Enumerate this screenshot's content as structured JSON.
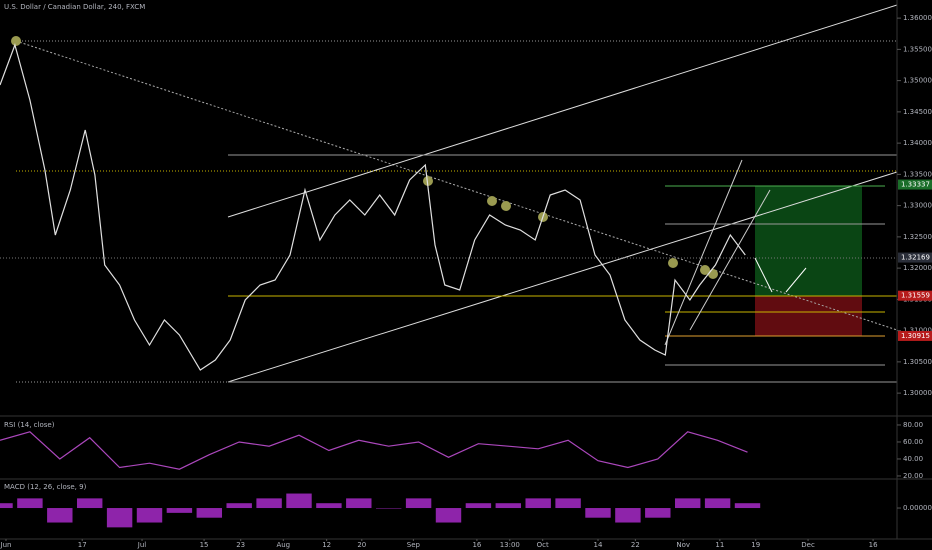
{
  "chart_data": [
    {
      "type": "line",
      "title": "U.S. Dollar / Canadian Dollar, 240, FXCM",
      "x": [
        0,
        2,
        4,
        6,
        7.4,
        9.4,
        11.4,
        12.7,
        14,
        16,
        18,
        20,
        22,
        24,
        26.8,
        28.8,
        30.8,
        32.8,
        34.8,
        36.8,
        38.8,
        40.8,
        42.8,
        44.8,
        46.8,
        48.8,
        50.8,
        52.8,
        54.8,
        56.9,
        58.2,
        59.5,
        61.5,
        63.5,
        65.5,
        67.6,
        69.6,
        71.6,
        73.6,
        75.6,
        77.6,
        79.6,
        81.6,
        83.6,
        85.6,
        87.6,
        89,
        90.3,
        92.3,
        93.6,
        95.7,
        97.7,
        99.7
      ],
      "series": [
        {
          "name": "USDCAD",
          "color": "#e0e0e0",
          "values": [
            1.3493,
            1.3557,
            1.3469,
            1.3357,
            1.3253,
            1.3325,
            1.3421,
            1.3349,
            1.3205,
            1.3173,
            1.3117,
            1.3077,
            1.3117,
            1.3093,
            1.3037,
            1.3053,
            1.3085,
            1.3149,
            1.3173,
            1.3181,
            1.3221,
            1.3325,
            1.3245,
            1.3285,
            1.3309,
            1.3285,
            1.3317,
            1.3285,
            1.3341,
            1.3365,
            1.3237,
            1.3173,
            1.3165,
            1.3245,
            1.3285,
            1.3269,
            1.3261,
            1.3245,
            1.3317,
            1.3325,
            1.3309,
            1.3221,
            1.3189,
            1.3117,
            1.3085,
            1.3069,
            1.3061,
            1.3181,
            1.3149,
            1.3173,
            1.3205,
            1.3253,
            1.3221
          ]
        }
      ],
      "xlim": [
        0,
        120
      ],
      "ylim": [
        1.2965,
        1.3629
      ],
      "yticks": [
        {
          "value": 1.3,
          "label": "1.30000"
        },
        {
          "value": 1.305,
          "label": "1.30500"
        },
        {
          "value": 1.31,
          "label": "1.31000"
        },
        {
          "value": 1.315,
          "label": "1.31500"
        },
        {
          "value": 1.32,
          "label": "1.32000"
        },
        {
          "value": 1.325,
          "label": "1.32500"
        },
        {
          "value": 1.33,
          "label": "1.33000"
        },
        {
          "value": 1.335,
          "label": "1.33500"
        },
        {
          "value": 1.34,
          "label": "1.34000"
        },
        {
          "value": 1.345,
          "label": "1.34500"
        },
        {
          "value": 1.35,
          "label": "1.35000"
        },
        {
          "value": 1.355,
          "label": "1.35500"
        },
        {
          "value": 1.36,
          "label": "1.36000"
        }
      ],
      "price_labels": [
        {
          "value": 1.33337,
          "label": "1.33337",
          "color": "#1b6e2a"
        },
        {
          "value": 1.32169,
          "label": "1.32169",
          "color": "#2a2e39"
        },
        {
          "value": 1.31559,
          "label": "1.31559",
          "color": "#b71c1c"
        },
        {
          "value": 1.30915,
          "label": "1.30915",
          "color": "#b71c1c"
        }
      ]
    },
    {
      "type": "line",
      "title": "RSI (14, close)",
      "x": [
        0,
        4,
        8,
        12,
        16,
        20,
        24,
        28,
        32,
        36,
        40,
        44,
        48,
        52,
        56,
        60,
        64,
        68,
        72,
        76,
        80,
        84,
        88,
        92,
        96,
        100
      ],
      "series": [
        {
          "name": "RSI",
          "color": "#ab47bc",
          "values": [
            62,
            72,
            40,
            65,
            30,
            35,
            28,
            45,
            60,
            55,
            68,
            50,
            62,
            55,
            60,
            42,
            58,
            55,
            52,
            62,
            38,
            30,
            40,
            72,
            62,
            48
          ]
        }
      ],
      "xlim": [
        0,
        120
      ],
      "ylim": [
        17.6,
        88.2
      ],
      "yticks": [
        {
          "value": 20,
          "label": "20.00"
        },
        {
          "value": 40,
          "label": "40.00"
        },
        {
          "value": 60,
          "label": "60.00"
        },
        {
          "value": 80,
          "label": "80.00"
        }
      ]
    },
    {
      "type": "bar",
      "title": "MACD (12, 26, close, 9)",
      "x": [
        0,
        4,
        8,
        12,
        16,
        20,
        24,
        28,
        32,
        36,
        40,
        44,
        48,
        52,
        56,
        60,
        64,
        68,
        72,
        76,
        80,
        84,
        88,
        92,
        96,
        100
      ],
      "series": [
        {
          "name": "Histogram",
          "color": "#8e24aa",
          "values": [
            0.001,
            0.002,
            -0.003,
            0.002,
            -0.004,
            -0.003,
            -0.001,
            -0.002,
            0.001,
            0.002,
            0.003,
            0.001,
            0.002,
            0,
            0.002,
            -0.003,
            0.001,
            0.001,
            0.002,
            0.002,
            -0.002,
            -0.003,
            -0.002,
            0.002,
            0.002,
            0.001
          ]
        }
      ],
      "xlim": [
        0,
        120
      ],
      "ylim": [
        -0.0062,
        0.0058
      ],
      "yticks": [
        {
          "value": 0,
          "label": "0.00000"
        }
      ],
      "xticks": [
        {
          "value": 0.8,
          "label": "Jun"
        },
        {
          "value": 11,
          "label": "17"
        },
        {
          "value": 19,
          "label": "Jul"
        },
        {
          "value": 27.3,
          "label": "15"
        },
        {
          "value": 32.2,
          "label": "23"
        },
        {
          "value": 37.9,
          "label": "Aug"
        },
        {
          "value": 43.7,
          "label": "12"
        },
        {
          "value": 48.4,
          "label": "20"
        },
        {
          "value": 55.3,
          "label": "Sep"
        },
        {
          "value": 63.8,
          "label": "16"
        },
        {
          "value": 68.2,
          "label": "13:00"
        },
        {
          "value": 72.6,
          "label": "Oct"
        },
        {
          "value": 80,
          "label": "14"
        },
        {
          "value": 85,
          "label": "22"
        },
        {
          "value": 91.4,
          "label": "Nov"
        },
        {
          "value": 96.3,
          "label": "11"
        },
        {
          "value": 101.1,
          "label": "19"
        },
        {
          "value": 108.1,
          "label": "Dec"
        },
        {
          "value": 116.8,
          "label": "16"
        }
      ]
    }
  ]
}
